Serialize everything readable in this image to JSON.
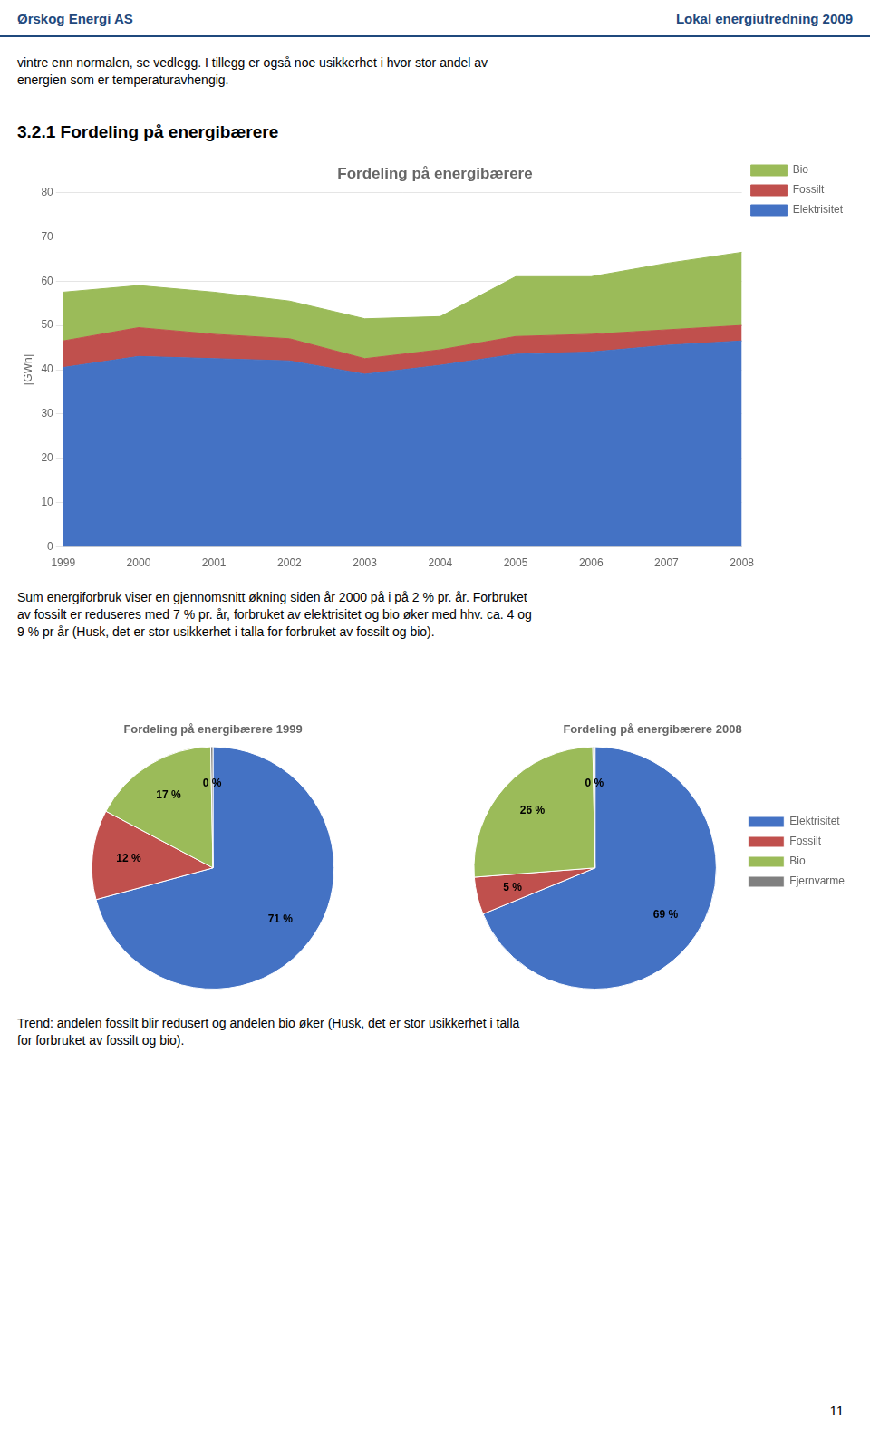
{
  "header_left": "Ørskog Energi AS",
  "header_right": "Lokal energiutredning 2009",
  "intro_text": "vintre enn normalen, se vedlegg.  I tillegg er også noe usikkerhet i hvor stor andel av\nenergien som er temperaturavhengig.",
  "section_title": "3.2.1 Fordeling på energibærere",
  "para_text": "Sum energiforbruk viser en gjennomsnitt økning siden år 2000 på i på 2 % pr. år. Forbruket\nav fossilt er reduseres med 7 % pr. år, forbruket av elektrisitet og bio øker med hhv. ca. 4 og\n9 % pr år (Husk, det er stor usikkerhet i talla for forbruket av fossilt og bio).",
  "trend_text": "Trend: andelen fossilt blir redusert og andelen bio øker (Husk, det er stor usikkerhet i talla\nfor forbruket av fossilt og bio).",
  "footer_number": "11",
  "chart_data": [
    {
      "type": "area",
      "title": "Fordeling på energibærere",
      "y_label": "[GWh]",
      "x": [
        1999,
        2000,
        2001,
        2002,
        2003,
        2004,
        2005,
        2006,
        2007,
        2008
      ],
      "series": [
        {
          "name": "Elektrisitet",
          "color": "#4472C4",
          "values": [
            40.5,
            43.0,
            42.5,
            42.0,
            39.0,
            41.0,
            43.5,
            44.0,
            45.5,
            46.5
          ]
        },
        {
          "name": "Fossilt",
          "color": "#C0504D",
          "values": [
            6.0,
            6.5,
            5.5,
            5.0,
            3.5,
            3.5,
            4.0,
            4.0,
            3.5,
            3.5
          ]
        },
        {
          "name": "Bio",
          "color": "#9BBB59",
          "values": [
            11.0,
            9.5,
            9.5,
            8.5,
            9.0,
            7.5,
            13.5,
            13.0,
            15.0,
            16.5
          ]
        }
      ],
      "xlim": [
        1999,
        2008
      ],
      "xticks": [
        1999,
        2000,
        2001,
        2002,
        2003,
        2004,
        2005,
        2006,
        2007,
        2008
      ],
      "ylim": [
        0,
        80
      ],
      "yticks": [
        0,
        10,
        20,
        30,
        40,
        50,
        60,
        70,
        80
      ],
      "stacked": true,
      "grid": true,
      "legend": "upper right"
    },
    {
      "type": "pie",
      "title": "Fordeling på energibærere 1999",
      "categories": [
        "Elektrisitet",
        "Fossilt",
        "Bio",
        "Fjernvarme"
      ],
      "values": [
        71,
        12,
        17,
        0.3
      ],
      "value_labels": [
        "71 %",
        "12 %",
        "17 %",
        "0 %"
      ],
      "colors": [
        "#4472C4",
        "#C0504D",
        "#9BBB59",
        "#808080"
      ],
      "data_labels": true
    },
    {
      "type": "pie",
      "title": "Fordeling på energibærere 2008",
      "categories": [
        "Elektrisitet",
        "Fossilt",
        "Bio",
        "Fjernvarme"
      ],
      "values": [
        69,
        5,
        26,
        0.3
      ],
      "value_labels": [
        "69 %",
        "5 %",
        "26 %",
        "0 %"
      ],
      "colors": [
        "#4472C4",
        "#C0504D",
        "#9BBB59",
        "#808080"
      ],
      "data_labels": true,
      "legend": "right"
    }
  ]
}
